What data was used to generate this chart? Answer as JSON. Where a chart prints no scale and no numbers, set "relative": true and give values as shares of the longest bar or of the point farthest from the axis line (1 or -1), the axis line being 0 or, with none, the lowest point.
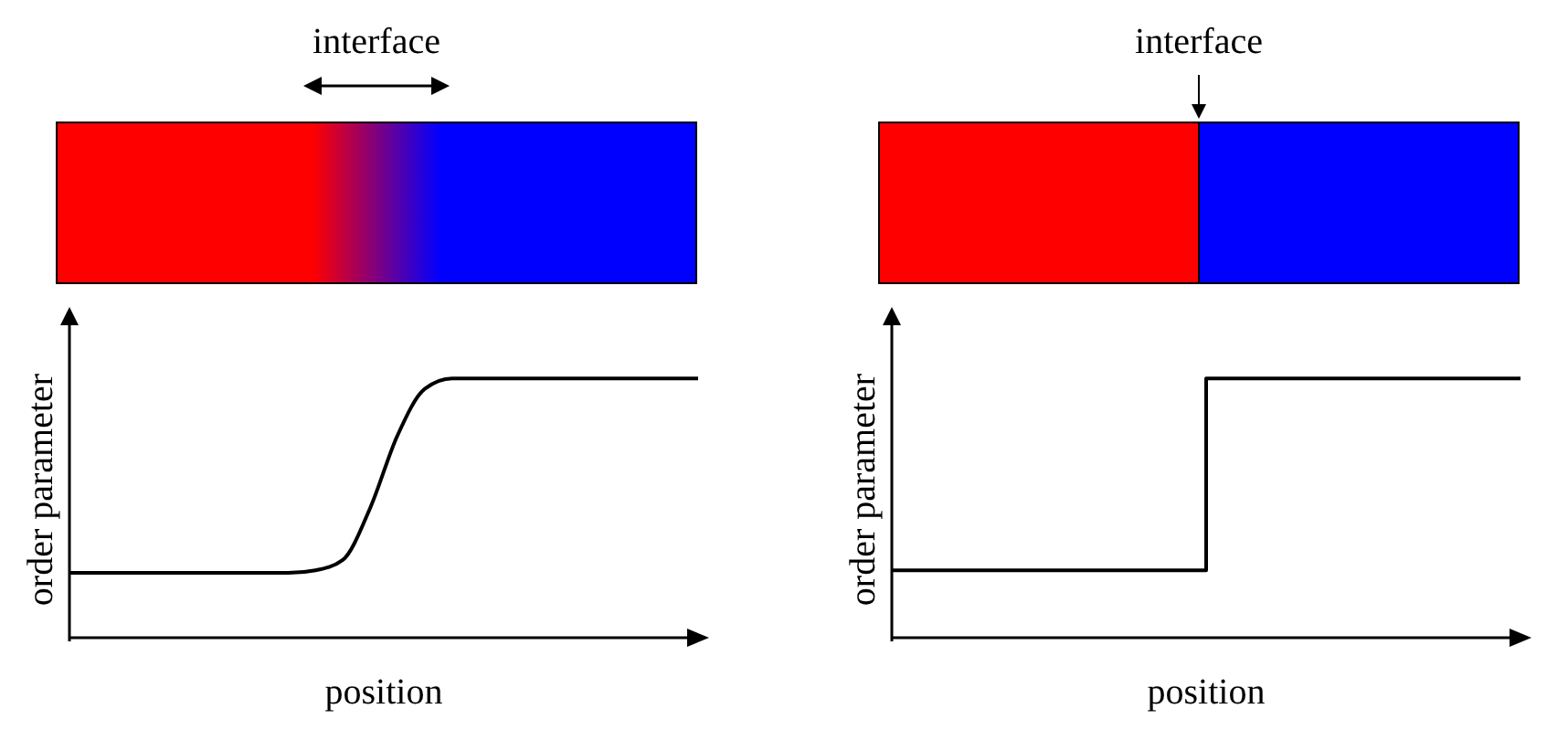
{
  "chart_data": [
    {
      "type": "line",
      "xlabel": "position",
      "ylabel": "order parameter",
      "annotations": [
        "interface"
      ],
      "relative": true,
      "categories": [
        null,
        null,
        null,
        null,
        null,
        null,
        null,
        null,
        null,
        null,
        null,
        null,
        null,
        null,
        null,
        null,
        null,
        null,
        null,
        null,
        null,
        null,
        null,
        null
      ],
      "series": [
        {
          "color": "#000000",
          "values": [
            0.25,
            0.25,
            0.25,
            0.25,
            0.25,
            0.25,
            0.25,
            0.25,
            0.25,
            0.26,
            0.3,
            0.5,
            0.78,
            0.96,
            1,
            1,
            1,
            1,
            1,
            1,
            1,
            1,
            1,
            1
          ]
        }
      ],
      "marker": "none"
    },
    {
      "type": "step",
      "xlabel": "position",
      "ylabel": "order parameter",
      "annotations": [
        "interface"
      ],
      "relative": true,
      "categories": [
        null,
        null,
        null
      ],
      "series": [
        {
          "color": "#000000",
          "values": [
            0.26,
            1,
            1
          ]
        }
      ],
      "marker": "none"
    }
  ]
}
